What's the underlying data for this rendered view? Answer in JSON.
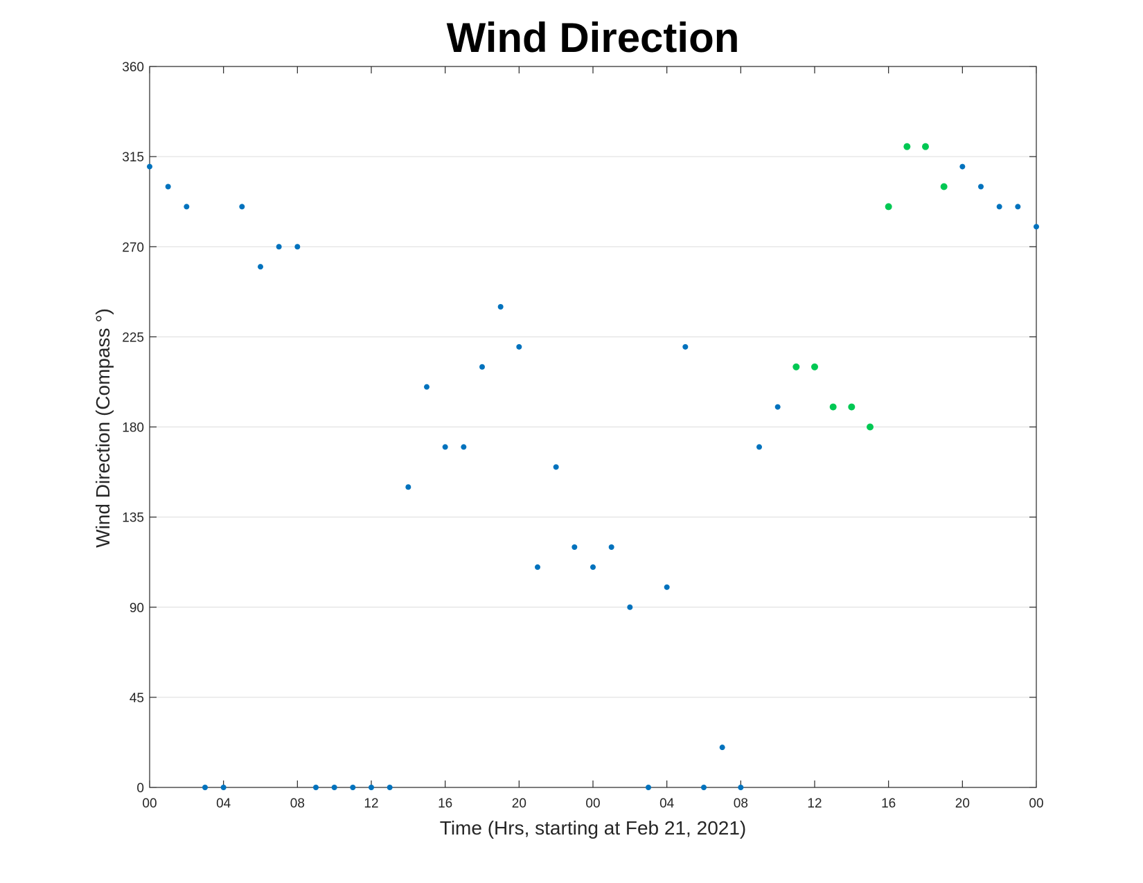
{
  "chart_data": {
    "type": "scatter",
    "title": "Wind Direction",
    "xlabel": "Time (Hrs, starting at Feb 21, 2021)",
    "ylabel": "Wind Direction (Compass °)",
    "xlim": [
      0,
      48
    ],
    "ylim": [
      0,
      360
    ],
    "x_ticks": [
      0,
      4,
      8,
      12,
      16,
      20,
      24,
      28,
      32,
      36,
      40,
      44,
      48
    ],
    "x_tick_labels": [
      "00",
      "04",
      "08",
      "12",
      "16",
      "20",
      "00",
      "04",
      "08",
      "12",
      "16",
      "20",
      "00"
    ],
    "y_ticks": [
      0,
      45,
      90,
      135,
      180,
      225,
      270,
      315,
      360
    ],
    "y_tick_labels": [
      "0",
      "45",
      "90",
      "135",
      "180",
      "225",
      "270",
      "315",
      "360"
    ],
    "grid": "horizontal",
    "colors": {
      "primary": "#0072bd",
      "highlight": "#00c853"
    },
    "points": [
      {
        "x": 0,
        "y": 310,
        "c": "primary"
      },
      {
        "x": 1,
        "y": 300,
        "c": "primary"
      },
      {
        "x": 2,
        "y": 290,
        "c": "primary"
      },
      {
        "x": 3,
        "y": 0,
        "c": "primary"
      },
      {
        "x": 4,
        "y": 0,
        "c": "primary"
      },
      {
        "x": 5,
        "y": 290,
        "c": "primary"
      },
      {
        "x": 6,
        "y": 260,
        "c": "primary"
      },
      {
        "x": 7,
        "y": 270,
        "c": "primary"
      },
      {
        "x": 8,
        "y": 270,
        "c": "primary"
      },
      {
        "x": 9,
        "y": 0,
        "c": "primary"
      },
      {
        "x": 10,
        "y": 0,
        "c": "primary"
      },
      {
        "x": 11,
        "y": 0,
        "c": "primary"
      },
      {
        "x": 12,
        "y": 0,
        "c": "primary"
      },
      {
        "x": 13,
        "y": 0,
        "c": "primary"
      },
      {
        "x": 14,
        "y": 150,
        "c": "primary"
      },
      {
        "x": 15,
        "y": 200,
        "c": "primary"
      },
      {
        "x": 16,
        "y": 170,
        "c": "primary"
      },
      {
        "x": 17,
        "y": 170,
        "c": "primary"
      },
      {
        "x": 18,
        "y": 210,
        "c": "primary"
      },
      {
        "x": 19,
        "y": 240,
        "c": "primary"
      },
      {
        "x": 20,
        "y": 220,
        "c": "primary"
      },
      {
        "x": 21,
        "y": 110,
        "c": "primary"
      },
      {
        "x": 22,
        "y": 160,
        "c": "primary"
      },
      {
        "x": 23,
        "y": 120,
        "c": "primary"
      },
      {
        "x": 24,
        "y": 110,
        "c": "primary"
      },
      {
        "x": 25,
        "y": 120,
        "c": "primary"
      },
      {
        "x": 26,
        "y": 90,
        "c": "primary"
      },
      {
        "x": 27,
        "y": 0,
        "c": "primary"
      },
      {
        "x": 28,
        "y": 100,
        "c": "primary"
      },
      {
        "x": 29,
        "y": 220,
        "c": "primary"
      },
      {
        "x": 30,
        "y": 0,
        "c": "primary"
      },
      {
        "x": 31,
        "y": 20,
        "c": "primary"
      },
      {
        "x": 32,
        "y": 0,
        "c": "primary"
      },
      {
        "x": 33,
        "y": 170,
        "c": "primary"
      },
      {
        "x": 34,
        "y": 190,
        "c": "primary"
      },
      {
        "x": 35,
        "y": 210,
        "c": "highlight"
      },
      {
        "x": 36,
        "y": 210,
        "c": "highlight"
      },
      {
        "x": 37,
        "y": 190,
        "c": "highlight"
      },
      {
        "x": 38,
        "y": 190,
        "c": "highlight"
      },
      {
        "x": 39,
        "y": 180,
        "c": "highlight"
      },
      {
        "x": 40,
        "y": 290,
        "c": "highlight"
      },
      {
        "x": 41,
        "y": 320,
        "c": "highlight"
      },
      {
        "x": 42,
        "y": 320,
        "c": "highlight"
      },
      {
        "x": 43,
        "y": 300,
        "c": "highlight"
      },
      {
        "x": 44,
        "y": 310,
        "c": "primary"
      },
      {
        "x": 45,
        "y": 300,
        "c": "primary"
      },
      {
        "x": 46,
        "y": 290,
        "c": "primary"
      },
      {
        "x": 47,
        "y": 290,
        "c": "primary"
      },
      {
        "x": 48,
        "y": 280,
        "c": "primary"
      }
    ]
  }
}
